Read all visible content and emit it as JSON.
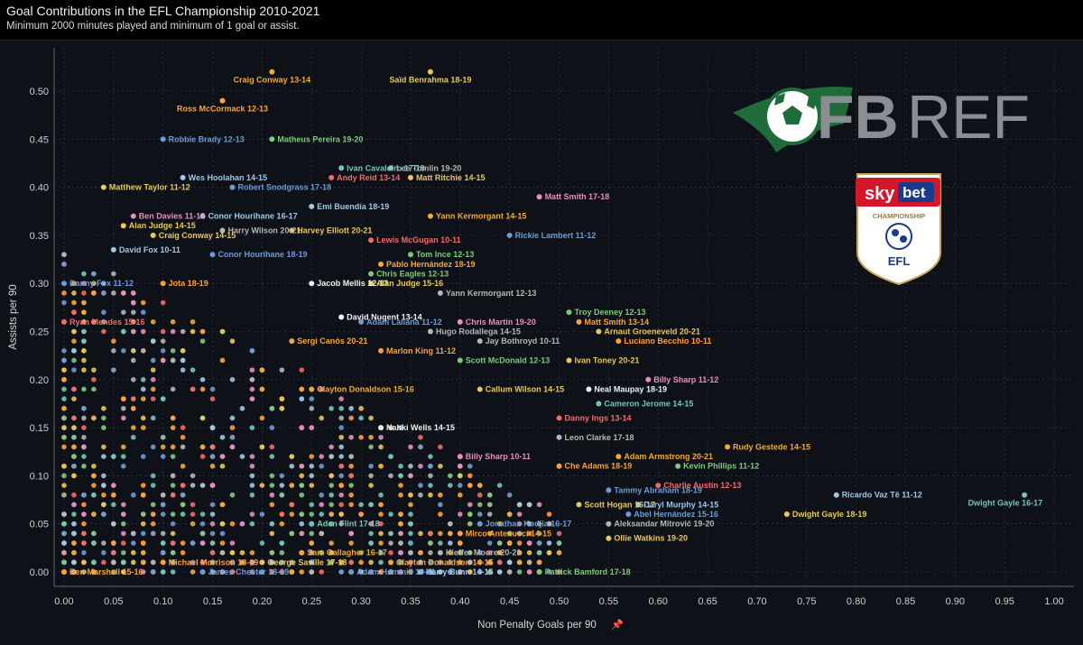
{
  "header": {
    "title": "Goal Contributions in the EFL Championship 2010-2021",
    "subtitle": "Minimum 2000 minutes played and minimum of 1 goal or assist."
  },
  "logos": {
    "fbref_left": "FB",
    "fbref_right": "REF",
    "badge_sky": "sky",
    "badge_bet": "bet",
    "badge_competition": "CHAMPIONSHIP",
    "badge_league": "EFL"
  },
  "chart_data": {
    "type": "scatter",
    "xlabel": "Non Penalty Goals per 90",
    "ylabel": "Assists per 90",
    "xlim": [
      -0.01,
      1.02
    ],
    "ylim": [
      -0.015,
      0.545
    ],
    "xticks": [
      "0.00",
      "0.05",
      "0.10",
      "0.15",
      "0.20",
      "0.25",
      "0.30",
      "0.35",
      "0.40",
      "0.45",
      "0.50",
      "0.55",
      "0.60",
      "0.65",
      "0.70",
      "0.75",
      "0.80",
      "0.85",
      "0.90",
      "0.95",
      "1.00"
    ],
    "yticks": [
      "0.00",
      "0.05",
      "0.10",
      "0.15",
      "0.20",
      "0.25",
      "0.30",
      "0.35",
      "0.40",
      "0.45",
      "0.50"
    ],
    "grid": true,
    "palette": [
      "#f2a83b",
      "#6e9bd4",
      "#f26a6a",
      "#e8c75b",
      "#7fc97f",
      "#e68fc0",
      "#9ec8e8",
      "#b5b5b5",
      "#ff9f40",
      "#73c6b6"
    ],
    "labeled_points": [
      {
        "label": "Craig Conway 13-14",
        "x": 0.21,
        "y": 0.52,
        "color": "#f2a83b"
      },
      {
        "label": "Saïd Benrahma 18-19",
        "x": 0.37,
        "y": 0.52,
        "color": "#e8c75b"
      },
      {
        "label": "Ross McCormack 12-13",
        "x": 0.16,
        "y": 0.49,
        "color": "#ff9f40"
      },
      {
        "label": "Robbie Brady 12-13",
        "x": 0.1,
        "y": 0.45,
        "color": "#6e9bd4"
      },
      {
        "label": "Matheus Pereira 19-20",
        "x": 0.21,
        "y": 0.45,
        "color": "#7fc97f"
      },
      {
        "label": "Ivan Cavaleiro 17-18",
        "x": 0.28,
        "y": 0.42,
        "color": "#73c6b6"
      },
      {
        "label": "Lee Tomlin 19-20",
        "x": 0.33,
        "y": 0.42,
        "color": "#b5b5b5"
      },
      {
        "label": "Wes Hoolahan 14-15",
        "x": 0.12,
        "y": 0.41,
        "color": "#9ec8e8"
      },
      {
        "label": "Andy Reid 13-14",
        "x": 0.27,
        "y": 0.41,
        "color": "#f26a6a"
      },
      {
        "label": "Matt Ritchie 14-15",
        "x": 0.35,
        "y": 0.41,
        "color": "#e8c75b"
      },
      {
        "label": "Matthew Taylor 11-12",
        "x": 0.04,
        "y": 0.4,
        "color": "#e8c75b"
      },
      {
        "label": "Robert Snodgrass 17-18",
        "x": 0.17,
        "y": 0.4,
        "color": "#6e9bd4"
      },
      {
        "label": "Matt Smith 17-18",
        "x": 0.48,
        "y": 0.39,
        "color": "#e68fc0"
      },
      {
        "label": "Ben Davies 11-12",
        "x": 0.07,
        "y": 0.37,
        "color": "#e68fc0"
      },
      {
        "label": "Emi Buendía 18-19",
        "x": 0.25,
        "y": 0.38,
        "color": "#9ec8e8"
      },
      {
        "label": "Conor Hourihane 16-17",
        "x": 0.14,
        "y": 0.37,
        "color": "#9ec8e8"
      },
      {
        "label": "Alan Judge 14-15",
        "x": 0.06,
        "y": 0.36,
        "color": "#e8c75b"
      },
      {
        "label": "Yann Kermorgant 14-15",
        "x": 0.37,
        "y": 0.37,
        "color": "#f2a83b"
      },
      {
        "label": "Harry Wilson 20-21",
        "x": 0.16,
        "y": 0.355,
        "color": "#b5b5b5"
      },
      {
        "label": "Harvey Elliott 20-21",
        "x": 0.23,
        "y": 0.355,
        "color": "#e8c75b"
      },
      {
        "label": "Rickie Lambert 11-12",
        "x": 0.45,
        "y": 0.35,
        "color": "#6e9bd4"
      },
      {
        "label": "Craig Conway 14-15",
        "x": 0.09,
        "y": 0.35,
        "color": "#e8c75b"
      },
      {
        "label": "Lewis McGugan 10-11",
        "x": 0.31,
        "y": 0.345,
        "color": "#f26a6a"
      },
      {
        "label": "David Fox 10-11",
        "x": 0.05,
        "y": 0.335,
        "color": "#9ec8e8"
      },
      {
        "label": "Conor Hourihane 18-19",
        "x": 0.15,
        "y": 0.33,
        "color": "#6e9bd4"
      },
      {
        "label": "Tom Ince 12-13",
        "x": 0.35,
        "y": 0.33,
        "color": "#7fc97f"
      },
      {
        "label": "Pablo Hernández 18-19",
        "x": 0.32,
        "y": 0.32,
        "color": "#f2a83b"
      },
      {
        "label": "Chris Eagles 12-13",
        "x": 0.31,
        "y": 0.31,
        "color": "#7fc97f"
      },
      {
        "label": "Danny Fox 11-12",
        "x": 0.0,
        "y": 0.3,
        "color": "#6e9bd4"
      },
      {
        "label": "Jota 18-19",
        "x": 0.1,
        "y": 0.3,
        "color": "#ff9f40"
      },
      {
        "label": "Jacob Mellis 12-13",
        "x": 0.25,
        "y": 0.3,
        "color": "#f0f0f0"
      },
      {
        "label": "Alan Judge 15-16",
        "x": 0.31,
        "y": 0.3,
        "color": "#e8c75b"
      },
      {
        "label": "Yann Kermorgant 12-13",
        "x": 0.38,
        "y": 0.29,
        "color": "#b5b5b5"
      },
      {
        "label": "Troy Deeney 12-13",
        "x": 0.51,
        "y": 0.27,
        "color": "#7fc97f"
      },
      {
        "label": "David Nugent 13-14",
        "x": 0.28,
        "y": 0.265,
        "color": "#f0f0f0"
      },
      {
        "label": "Adam Lallana 11-12",
        "x": 0.3,
        "y": 0.26,
        "color": "#6e9bd4"
      },
      {
        "label": "Ryan Mendes 15-16",
        "x": 0.0,
        "y": 0.26,
        "color": "#f26a6a"
      },
      {
        "label": "Chris Martin 19-20",
        "x": 0.4,
        "y": 0.26,
        "color": "#e68fc0"
      },
      {
        "label": "Matt Smith 13-14",
        "x": 0.52,
        "y": 0.26,
        "color": "#ff9f40"
      },
      {
        "label": "Arnaut Groeneveld 20-21",
        "x": 0.54,
        "y": 0.25,
        "color": "#e8c75b"
      },
      {
        "label": "Hugo Rodallega 14-15",
        "x": 0.37,
        "y": 0.25,
        "color": "#b5b5b5"
      },
      {
        "label": "Sergi Canós 20-21",
        "x": 0.23,
        "y": 0.24,
        "color": "#f2a83b"
      },
      {
        "label": "Luciano Becchio 10-11",
        "x": 0.56,
        "y": 0.24,
        "color": "#ff9f40"
      },
      {
        "label": "Jay Bothroyd 10-11",
        "x": 0.42,
        "y": 0.24,
        "color": "#b5b5b5"
      },
      {
        "label": "Marlon King 11-12",
        "x": 0.32,
        "y": 0.23,
        "color": "#ff9f40"
      },
      {
        "label": "Scott McDonald 12-13",
        "x": 0.4,
        "y": 0.22,
        "color": "#7fc97f"
      },
      {
        "label": "Ivan Toney 20-21",
        "x": 0.51,
        "y": 0.22,
        "color": "#e8c75b"
      },
      {
        "label": "Billy Sharp 11-12",
        "x": 0.59,
        "y": 0.2,
        "color": "#e68fc0"
      },
      {
        "label": "Clayton Donaldson 15-16",
        "x": 0.25,
        "y": 0.19,
        "color": "#f2a83b"
      },
      {
        "label": "Callum Wilson 14-15",
        "x": 0.42,
        "y": 0.19,
        "color": "#e8c75b"
      },
      {
        "label": "Neal Maupay 18-19",
        "x": 0.53,
        "y": 0.19,
        "color": "#f0f0f0"
      },
      {
        "label": "Cameron Jerome 14-15",
        "x": 0.54,
        "y": 0.175,
        "color": "#73c6b6"
      },
      {
        "label": "Danny Ings 13-14",
        "x": 0.5,
        "y": 0.16,
        "color": "#f26a6a"
      },
      {
        "label": "Nahki Wells 14-15",
        "x": 0.32,
        "y": 0.15,
        "color": "#f0f0f0"
      },
      {
        "label": "Leon Clarke 17-18",
        "x": 0.5,
        "y": 0.14,
        "color": "#b5b5b5"
      },
      {
        "label": "Rudy Gestede 14-15",
        "x": 0.67,
        "y": 0.13,
        "color": "#f2a83b"
      },
      {
        "label": "Adam Armstrong 20-21",
        "x": 0.56,
        "y": 0.12,
        "color": "#f2a83b"
      },
      {
        "label": "Billy Sharp 10-11",
        "x": 0.4,
        "y": 0.12,
        "color": "#e68fc0"
      },
      {
        "label": "Kevin Phillips 11-12",
        "x": 0.62,
        "y": 0.11,
        "color": "#7fc97f"
      },
      {
        "label": "Che Adams 18-19",
        "x": 0.5,
        "y": 0.11,
        "color": "#ff9f40"
      },
      {
        "label": "Charlie Austin 12-13",
        "x": 0.6,
        "y": 0.09,
        "color": "#f26a6a"
      },
      {
        "label": "Tammy Abraham 18-19",
        "x": 0.55,
        "y": 0.085,
        "color": "#6e9bd4"
      },
      {
        "label": "Ricardo Vaz Tê 11-12",
        "x": 0.78,
        "y": 0.08,
        "color": "#9ec8e8"
      },
      {
        "label": "Dwight Gayle 16-17",
        "x": 0.97,
        "y": 0.08,
        "color": "#73c6b6"
      },
      {
        "label": "Scott Hogan 16-17",
        "x": 0.52,
        "y": 0.07,
        "color": "#e8c75b"
      },
      {
        "label": "Daryl Murphy 14-15",
        "x": 0.58,
        "y": 0.07,
        "color": "#9ec8e8"
      },
      {
        "label": "Abel Hernández 15-16",
        "x": 0.57,
        "y": 0.06,
        "color": "#6e9bd4"
      },
      {
        "label": "Jonathan Kodjia 16-17",
        "x": 0.42,
        "y": 0.05,
        "color": "#6e9bd4"
      },
      {
        "label": "Aleksandar Mitrović 19-20",
        "x": 0.55,
        "y": 0.05,
        "color": "#b5b5b5"
      },
      {
        "label": "Dwight Gayle 18-19",
        "x": 0.73,
        "y": 0.06,
        "color": "#e8c75b"
      },
      {
        "label": "Aden Flint 17-18",
        "x": 0.25,
        "y": 0.05,
        "color": "#73c6b6"
      },
      {
        "label": "Mirco Antenucci 14-15",
        "x": 0.4,
        "y": 0.04,
        "color": "#ff9f40"
      },
      {
        "label": "Ollie Watkins 19-20",
        "x": 0.55,
        "y": 0.035,
        "color": "#e8c75b"
      },
      {
        "label": "Kieffer Moore 20-21",
        "x": 0.38,
        "y": 0.02,
        "color": "#b5b5b5"
      },
      {
        "label": "Sam Gallagher 16-17",
        "x": 0.24,
        "y": 0.02,
        "color": "#f2a83b"
      },
      {
        "label": "Michael Morrison 18-19",
        "x": 0.1,
        "y": 0.01,
        "color": "#ff9f40"
      },
      {
        "label": "George Saville 17-18",
        "x": 0.2,
        "y": 0.01,
        "color": "#e8c75b"
      },
      {
        "label": "Clayton Donaldson 14-15",
        "x": 0.33,
        "y": 0.01,
        "color": "#f2a83b"
      },
      {
        "label": "Ben Marshall 15-16",
        "x": 0.0,
        "y": 0.0,
        "color": "#f2a83b"
      },
      {
        "label": "James Chester 18-19",
        "x": 0.14,
        "y": 0.0,
        "color": "#6e9bd4"
      },
      {
        "label": "Adam Hammill 10-11",
        "x": 0.29,
        "y": 0.0,
        "color": "#6e9bd4"
      },
      {
        "label": "Harry Bunn 14-15",
        "x": 0.36,
        "y": 0.0,
        "color": "#9ec8e8"
      },
      {
        "label": "Patrick Bamford 17-18",
        "x": 0.48,
        "y": 0.0,
        "color": "#7fc97f"
      }
    ]
  }
}
